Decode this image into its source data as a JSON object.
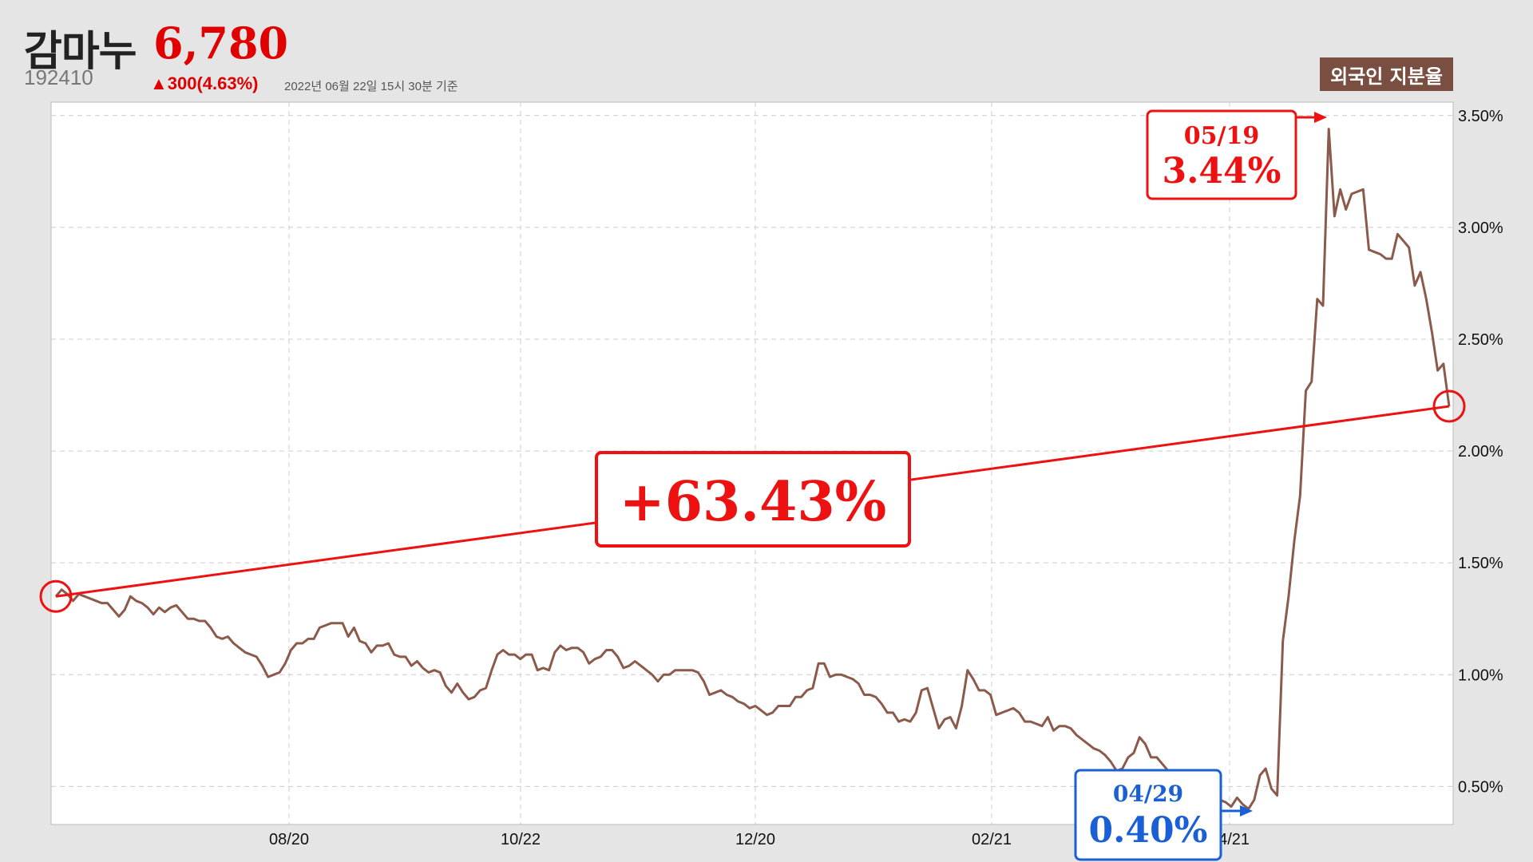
{
  "header": {
    "name": "감마누",
    "price": "6,780",
    "code": "192410",
    "change": "▲300(4.63%)",
    "as_of": "2022년 06월 22일 15시 30분 기준",
    "badge": "외국인 지분율"
  },
  "annotations": {
    "change_label": "+63.43%",
    "peak": {
      "date": "05/19",
      "value_label": "3.44%"
    },
    "low": {
      "date": "04/29",
      "value_label": "0.40%"
    }
  },
  "colors": {
    "line": "#8b5a4b",
    "accent_red": "#ee1111",
    "accent_blue": "#1a5fd6",
    "badge": "#7a4e40",
    "background": "#e5e5e5"
  },
  "chart_data": {
    "type": "line",
    "title": "외국인 지분율",
    "x_ticks": [
      "08/20",
      "10/22",
      "12/20",
      "02/21",
      "04/21"
    ],
    "y_ticks": [
      "0.50%",
      "1.00%",
      "1.50%",
      "2.00%",
      "2.50%",
      "3.00%",
      "3.50%"
    ],
    "ylim": [
      0.33,
      3.56
    ],
    "grid": true,
    "series": [
      {
        "name": "외국인 지분율",
        "unit": "%",
        "values": [
          1.35,
          1.38,
          1.36,
          1.33,
          1.36,
          1.35,
          1.34,
          1.33,
          1.32,
          1.32,
          1.29,
          1.26,
          1.29,
          1.35,
          1.33,
          1.32,
          1.3,
          1.27,
          1.3,
          1.28,
          1.3,
          1.31,
          1.28,
          1.25,
          1.25,
          1.24,
          1.24,
          1.21,
          1.17,
          1.16,
          1.17,
          1.14,
          1.12,
          1.1,
          1.09,
          1.08,
          1.04,
          0.99,
          1.0,
          1.01,
          1.05,
          1.11,
          1.14,
          1.14,
          1.16,
          1.16,
          1.21,
          1.22,
          1.23,
          1.23,
          1.23,
          1.17,
          1.21,
          1.15,
          1.14,
          1.1,
          1.13,
          1.13,
          1.14,
          1.09,
          1.08,
          1.08,
          1.04,
          1.06,
          1.03,
          1.01,
          1.02,
          1.01,
          0.95,
          0.92,
          0.96,
          0.92,
          0.89,
          0.9,
          0.93,
          0.94,
          1.02,
          1.09,
          1.11,
          1.09,
          1.09,
          1.07,
          1.09,
          1.09,
          1.02,
          1.03,
          1.02,
          1.1,
          1.13,
          1.11,
          1.12,
          1.12,
          1.1,
          1.05,
          1.07,
          1.08,
          1.11,
          1.11,
          1.08,
          1.03,
          1.04,
          1.06,
          1.04,
          1.02,
          1.0,
          0.97,
          1.0,
          1.0,
          1.02,
          1.02,
          1.02,
          1.02,
          1.01,
          0.97,
          0.91,
          0.92,
          0.93,
          0.91,
          0.9,
          0.88,
          0.87,
          0.85,
          0.86,
          0.84,
          0.82,
          0.83,
          0.86,
          0.86,
          0.86,
          0.9,
          0.9,
          0.93,
          0.94,
          1.05,
          1.05,
          0.99,
          1.0,
          1.0,
          0.99,
          0.98,
          0.96,
          0.91,
          0.91,
          0.9,
          0.87,
          0.83,
          0.83,
          0.79,
          0.8,
          0.79,
          0.83,
          0.93,
          0.94,
          0.85,
          0.76,
          0.8,
          0.81,
          0.76,
          0.86,
          1.02,
          0.98,
          0.93,
          0.93,
          0.91,
          0.82,
          0.83,
          0.84,
          0.85,
          0.83,
          0.79,
          0.79,
          0.78,
          0.77,
          0.81,
          0.75,
          0.77,
          0.77,
          0.76,
          0.73,
          0.71,
          0.69,
          0.67,
          0.66,
          0.64,
          0.61,
          0.57,
          0.58,
          0.63,
          0.65,
          0.72,
          0.69,
          0.63,
          0.63,
          0.6,
          0.57,
          0.56,
          0.55,
          0.55,
          0.53,
          0.51,
          0.48,
          0.46,
          0.45,
          0.44,
          0.43,
          0.41,
          0.45,
          0.42,
          0.4,
          0.44,
          0.55,
          0.58,
          0.49,
          0.46,
          1.15,
          1.35,
          1.6,
          1.8,
          2.27,
          2.31,
          2.68,
          2.65,
          3.44,
          3.05,
          3.17,
          3.08,
          3.15,
          3.16,
          3.17,
          2.9,
          2.89,
          2.88,
          2.86,
          2.86,
          2.97,
          2.94,
          2.91,
          2.74,
          2.8,
          2.68,
          2.53,
          2.36,
          2.39,
          2.2
        ]
      }
    ]
  }
}
